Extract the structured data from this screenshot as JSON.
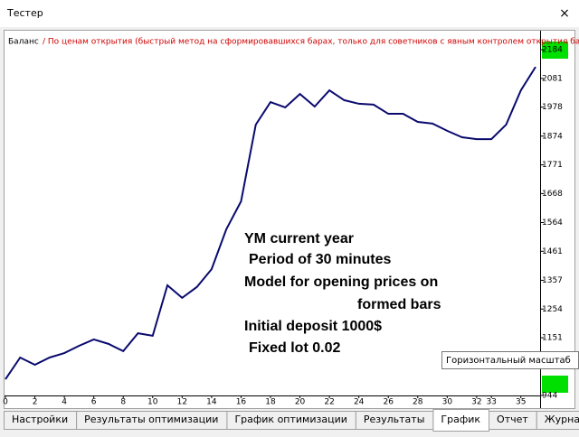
{
  "window": {
    "title": "Тестер",
    "close": "×"
  },
  "tabs": [
    "Настройки",
    "Результаты оптимизации",
    "График оптимизации",
    "Результаты",
    "График",
    "Отчет",
    "Журнал"
  ],
  "active_tab": 4,
  "tooltip": "Горизонтальный масштаб",
  "chart_data": {
    "type": "line",
    "subtitle": "/ По ценам открытия (быстрый метод на сформировавшихся барах, только для советников с явным контролем открытия баров",
    "annotations": [
      "YM current year",
      "Period of 30 minutes",
      "Model for opening prices on",
      "formed bars",
      "Initial deposit 1000$",
      "Fixed lot 0.02"
    ],
    "x": [
      0,
      1,
      2,
      3,
      4,
      5,
      6,
      7,
      8,
      9,
      10,
      11,
      12,
      13,
      14,
      15,
      16,
      17,
      18,
      19,
      20,
      21,
      22,
      23,
      24,
      25,
      26,
      27,
      28,
      29,
      30,
      31,
      32,
      33,
      34,
      35,
      36
    ],
    "series": [
      {
        "name": "Баланс",
        "color": "#0a0a6e",
        "values": [
          1002,
          1080,
          1054,
          1080,
          1096,
          1122,
          1145,
          1129,
          1103,
          1167,
          1158,
          1339,
          1294,
          1333,
          1397,
          1540,
          1640,
          1915,
          1996,
          1977,
          2025,
          1980,
          2038,
          2003,
          1990,
          1987,
          1954,
          1954,
          1925,
          1919,
          1893,
          1870,
          1863,
          1863,
          1915,
          2038,
          2122
        ]
      }
    ],
    "xlim": [
      0,
      36
    ],
    "xticks": [
      0,
      2,
      4,
      6,
      8,
      10,
      12,
      14,
      16,
      18,
      20,
      22,
      24,
      26,
      28,
      30,
      32,
      33,
      35
    ],
    "ylim": [
      944,
      2184
    ],
    "yticks": [
      944,
      1151,
      1254,
      1357,
      1461,
      1564,
      1668,
      1771,
      1874,
      1978,
      2081,
      2184
    ],
    "y_axis_side": "right"
  }
}
